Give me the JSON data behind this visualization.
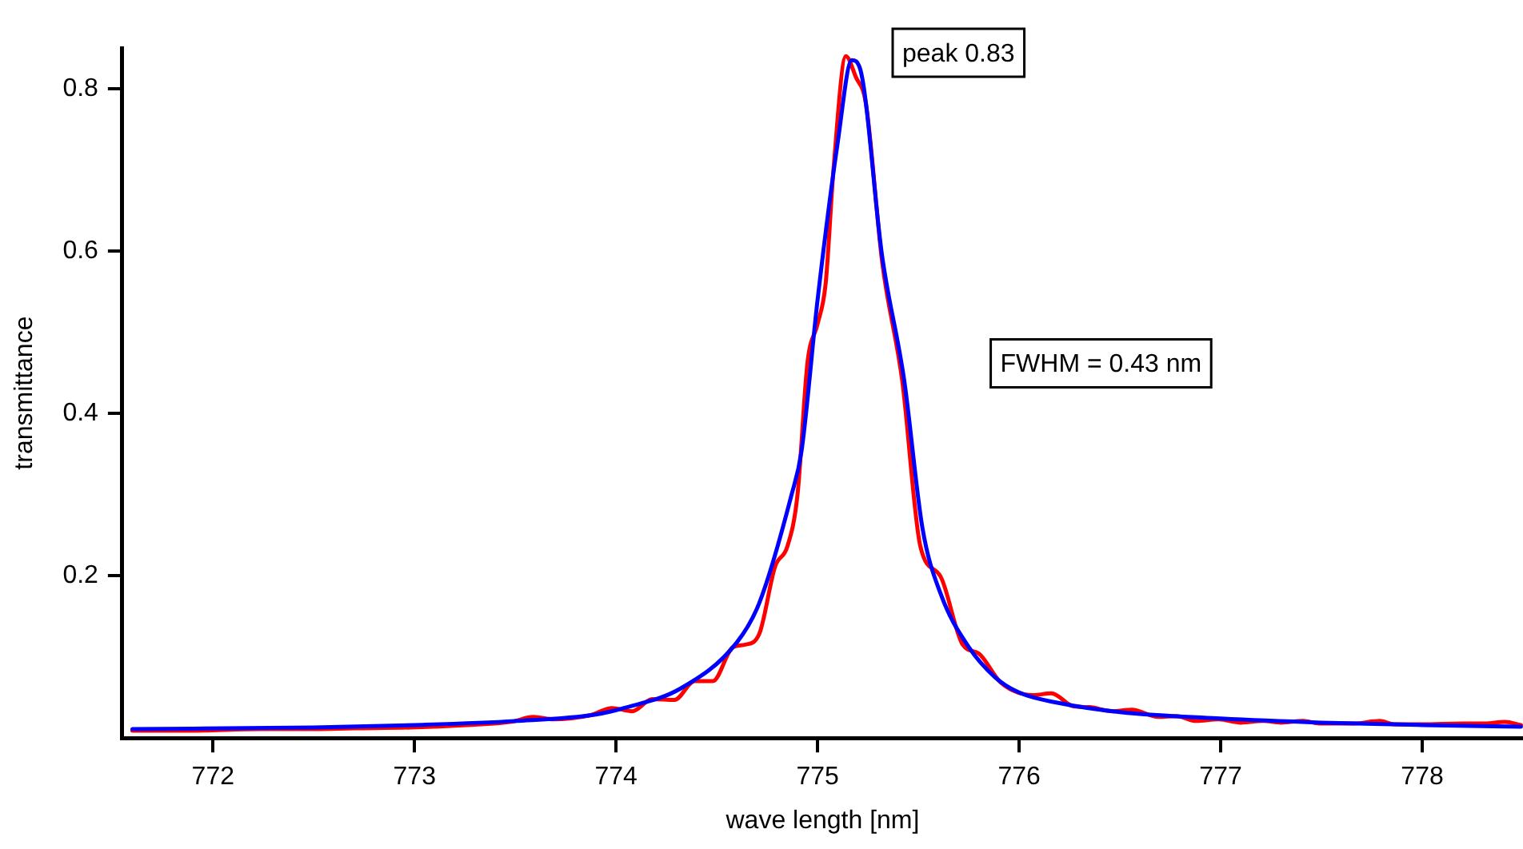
{
  "chart_data": {
    "type": "line",
    "xlabel": "wave length [nm]",
    "ylabel": "transmittance",
    "annotations": [
      "peak 0.83",
      "FWHM = 0.43 nm"
    ],
    "series": [
      {
        "color": "#ff0000",
        "x": [
          771.6,
          771.89,
          772.23,
          772.48,
          772.7,
          772.98,
          773.26,
          773.48,
          773.59,
          773.69,
          773.87,
          773.98,
          774.08,
          774.18,
          774.29,
          774.39,
          774.48,
          774.58,
          774.64,
          774.71,
          774.79,
          774.85,
          774.9,
          774.95,
          775.0,
          775.04,
          775.08,
          775.14,
          775.19,
          775.24,
          775.32,
          775.42,
          775.51,
          775.61,
          775.72,
          775.8,
          775.91,
          776.07,
          776.16,
          776.27,
          776.35,
          776.46,
          776.56,
          776.69,
          776.78,
          776.88,
          776.99,
          777.1,
          777.21,
          777.3,
          777.41,
          777.49,
          777.66,
          777.79,
          777.86,
          778.0,
          778.2,
          778.31,
          778.41,
          778.49
        ],
        "values": [
          0.009,
          0.009,
          0.011,
          0.011,
          0.012,
          0.013,
          0.016,
          0.02,
          0.026,
          0.023,
          0.028,
          0.037,
          0.033,
          0.048,
          0.047,
          0.07,
          0.07,
          0.112,
          0.115,
          0.128,
          0.212,
          0.236,
          0.299,
          0.463,
          0.51,
          0.56,
          0.704,
          0.84,
          0.814,
          0.781,
          0.587,
          0.44,
          0.236,
          0.199,
          0.115,
          0.104,
          0.068,
          0.053,
          0.055,
          0.039,
          0.038,
          0.033,
          0.035,
          0.026,
          0.027,
          0.021,
          0.023,
          0.019,
          0.021,
          0.019,
          0.021,
          0.018,
          0.018,
          0.021,
          0.017,
          0.017,
          0.018,
          0.018,
          0.02,
          0.016
        ]
      },
      {
        "color": "#0000ff",
        "x": [
          771.6,
          772.5,
          773.0,
          773.5,
          773.9,
          774.04,
          774.32,
          774.6,
          774.71,
          774.87,
          774.92,
          775.0,
          775.1,
          775.17,
          775.21,
          775.32,
          775.43,
          775.52,
          775.61,
          775.75,
          775.88,
          776.0,
          776.2,
          776.5,
          777.0,
          777.5,
          778.0,
          778.49
        ],
        "values": [
          0.011,
          0.013,
          0.016,
          0.021,
          0.029,
          0.037,
          0.061,
          0.118,
          0.166,
          0.299,
          0.353,
          0.54,
          0.734,
          0.835,
          0.825,
          0.594,
          0.44,
          0.259,
          0.178,
          0.112,
          0.075,
          0.056,
          0.043,
          0.032,
          0.024,
          0.019,
          0.016,
          0.014
        ]
      }
    ],
    "xlim": [
      771.55,
      778.5
    ],
    "ylim": [
      0,
      0.85
    ],
    "xticks": [
      772,
      773,
      774,
      775,
      776,
      777,
      778
    ],
    "yticks": [
      0.2,
      0.4,
      0.6,
      0.8
    ],
    "grid": false,
    "legend": false,
    "marker": "none",
    "line_style": "solid"
  }
}
